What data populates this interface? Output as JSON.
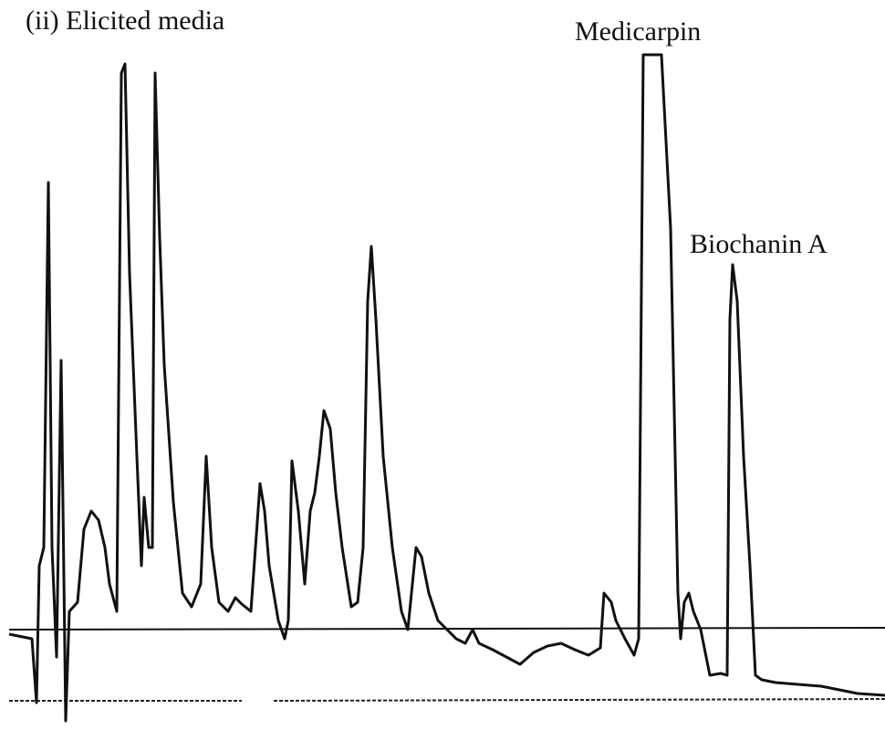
{
  "title": "(ii) Elicited media",
  "peaks": [
    {
      "label": "Medicarpin"
    },
    {
      "label": "Biochanin A"
    }
  ]
}
